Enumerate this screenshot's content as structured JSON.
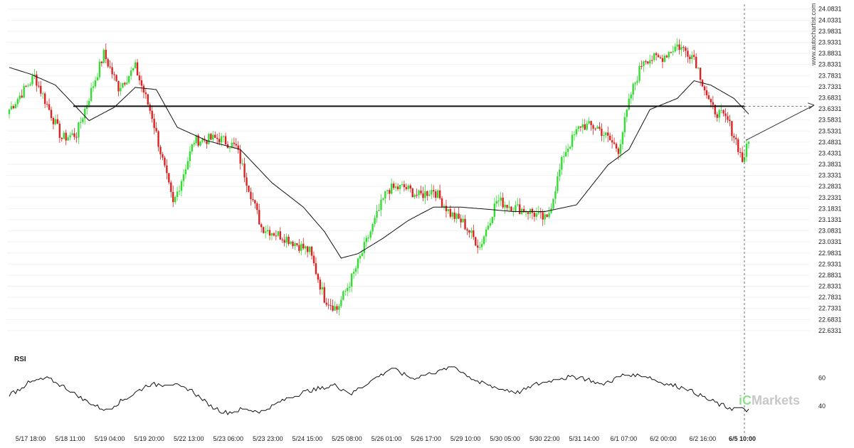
{
  "watermark": "www.autochartist.com",
  "brand": {
    "accent": "iC",
    "rest": "Markets"
  },
  "colors": {
    "bull": "#33dd33",
    "bear": "#dd2222",
    "ma": "#111111",
    "level": "#111111",
    "rsi": "#111111",
    "projection": "#333333"
  },
  "chart_data": [
    {
      "type": "candlestick",
      "title": "",
      "ylim": [
        22.5831,
        24.1031
      ],
      "y_ticks": [
        "24.0831",
        "24.0331",
        "23.9831",
        "23.9331",
        "23.8831",
        "23.8331",
        "23.7831",
        "23.7331",
        "23.6831",
        "23.6331",
        "23.5831",
        "23.5331",
        "23.4831",
        "23.4331",
        "23.3831",
        "23.3331",
        "23.2831",
        "23.2331",
        "23.1831",
        "23.1331",
        "23.0831",
        "23.0331",
        "22.9831",
        "22.9331",
        "22.8831",
        "22.8331",
        "22.7831",
        "22.7331",
        "22.6831",
        "22.6331"
      ],
      "x_ticks": [
        "5/17 18:00",
        "5/18 11:00",
        "5/19 04:00",
        "5/19 20:00",
        "5/22 13:00",
        "5/23 06:00",
        "5/23 23:00",
        "5/24 15:00",
        "5/25 08:00",
        "5/26 01:00",
        "5/26 17:00",
        "5/29 10:00",
        "5/30 05:00",
        "5/30 22:00",
        "5/31 14:00",
        "6/1 07:00",
        "6/2 00:00",
        "6/2 16:00",
        "6/5 10:00"
      ],
      "price_anchors": [
        [
          0,
          23.63
        ],
        [
          12,
          23.78
        ],
        [
          25,
          23.5
        ],
        [
          32,
          23.52
        ],
        [
          45,
          23.88
        ],
        [
          52,
          23.73
        ],
        [
          60,
          23.82
        ],
        [
          68,
          23.6
        ],
        [
          78,
          23.2
        ],
        [
          88,
          23.49
        ],
        [
          100,
          23.5
        ],
        [
          108,
          23.46
        ],
        [
          120,
          23.1
        ],
        [
          132,
          23.05
        ],
        [
          143,
          22.99
        ],
        [
          150,
          22.78
        ],
        [
          156,
          22.73
        ],
        [
          164,
          22.89
        ],
        [
          172,
          23.08
        ],
        [
          180,
          23.27
        ],
        [
          188,
          23.28
        ],
        [
          195,
          23.24
        ],
        [
          202,
          23.27
        ],
        [
          210,
          23.16
        ],
        [
          216,
          23.12
        ],
        [
          224,
          23.01
        ],
        [
          232,
          23.22
        ],
        [
          240,
          23.19
        ],
        [
          248,
          23.17
        ],
        [
          256,
          23.13
        ],
        [
          264,
          23.43
        ],
        [
          272,
          23.56
        ],
        [
          280,
          23.55
        ],
        [
          290,
          23.45
        ],
        [
          296,
          23.7
        ],
        [
          302,
          23.86
        ],
        [
          310,
          23.86
        ],
        [
          318,
          23.92
        ],
        [
          326,
          23.87
        ],
        [
          334,
          23.64
        ],
        [
          342,
          23.58
        ],
        [
          346,
          23.49
        ],
        [
          349,
          23.4
        ],
        [
          352,
          23.48
        ]
      ],
      "ma_anchors": [
        [
          0,
          23.82
        ],
        [
          10,
          23.79
        ],
        [
          22,
          23.74
        ],
        [
          38,
          23.58
        ],
        [
          50,
          23.64
        ],
        [
          60,
          23.73
        ],
        [
          70,
          23.72
        ],
        [
          80,
          23.55
        ],
        [
          94,
          23.49
        ],
        [
          110,
          23.45
        ],
        [
          125,
          23.3
        ],
        [
          140,
          23.19
        ],
        [
          150,
          23.08
        ],
        [
          158,
          22.96
        ],
        [
          166,
          22.98
        ],
        [
          178,
          23.05
        ],
        [
          190,
          23.13
        ],
        [
          202,
          23.19
        ],
        [
          215,
          23.19
        ],
        [
          228,
          23.18
        ],
        [
          240,
          23.17
        ],
        [
          255,
          23.17
        ],
        [
          270,
          23.2
        ],
        [
          285,
          23.38
        ],
        [
          295,
          23.45
        ],
        [
          305,
          23.63
        ],
        [
          318,
          23.68
        ],
        [
          326,
          23.76
        ],
        [
          334,
          23.74
        ],
        [
          345,
          23.68
        ],
        [
          352,
          23.61
        ]
      ],
      "resistance_level": 23.645,
      "projection_target": 23.65
    },
    {
      "type": "line",
      "title": "RSI",
      "ylim": [
        30,
        72
      ],
      "y_ticks": [
        60,
        40
      ],
      "rsi_anchors": [
        [
          0,
          48
        ],
        [
          10,
          57
        ],
        [
          18,
          60
        ],
        [
          26,
          54
        ],
        [
          36,
          44
        ],
        [
          46,
          37
        ],
        [
          55,
          45
        ],
        [
          66,
          55
        ],
        [
          76,
          56
        ],
        [
          86,
          52
        ],
        [
          96,
          40
        ],
        [
          104,
          35
        ],
        [
          112,
          38
        ],
        [
          120,
          36
        ],
        [
          130,
          44
        ],
        [
          140,
          50
        ],
        [
          155,
          55
        ],
        [
          163,
          49
        ],
        [
          172,
          58
        ],
        [
          182,
          67
        ],
        [
          192,
          60
        ],
        [
          202,
          64
        ],
        [
          212,
          68
        ],
        [
          222,
          58
        ],
        [
          232,
          53
        ],
        [
          242,
          50
        ],
        [
          252,
          56
        ],
        [
          262,
          60
        ],
        [
          272,
          61
        ],
        [
          282,
          55
        ],
        [
          292,
          62
        ],
        [
          302,
          62
        ],
        [
          312,
          56
        ],
        [
          322,
          53
        ],
        [
          332,
          45
        ],
        [
          342,
          39
        ],
        [
          350,
          38
        ],
        [
          352,
          37
        ]
      ]
    }
  ]
}
